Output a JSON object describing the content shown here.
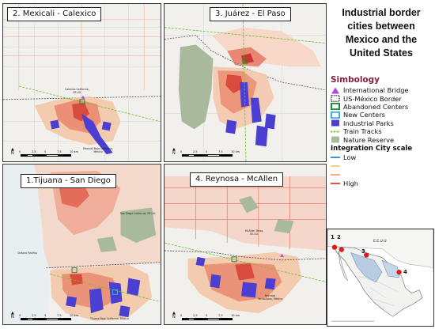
{
  "main_title": {
    "line1": "Industrial border",
    "line2": "cities between",
    "line3": "Mexico and the",
    "line4": "United States"
  },
  "panels": {
    "mexicali": {
      "title": "2. Mexicali - Calexico",
      "label_us": "Calexico California,\nEE.UU",
      "label_mx": "Mexicali Baja California,\nMéxico"
    },
    "juarez": {
      "title": "3. Juárez - El Paso"
    },
    "tijuana": {
      "title": "1.Tijuana - San Diego",
      "label_us": "San Diego California, EE.UU.",
      "label_mx": "Tijuana Baja California, México",
      "label_ocean": "Océano Pacífico"
    },
    "reynosa": {
      "title": "4. Reynosa - McAllen",
      "label_us": "McAllen Texas,\nEE.UU.",
      "label_mx": "Reynosa\nTamaulipas, México"
    }
  },
  "scale_bar": {
    "ticks": [
      "0",
      "5",
      "2.5",
      "5",
      "7.5",
      "10 km"
    ]
  },
  "north_arrow": "N",
  "legend": {
    "title": "Simbology",
    "items": [
      {
        "label": "International Bridge",
        "icon": "triangle-icon",
        "color": "#b04adf"
      },
      {
        "label": "US-México Border",
        "icon": "dashed-box-icon",
        "color": "#222222"
      },
      {
        "label": "Abandoned Centers",
        "icon": "box-icon",
        "color": "#1f8a3c"
      },
      {
        "label": "New Centers",
        "icon": "box-icon",
        "color": "#3ab0d8"
      },
      {
        "label": "Industrial Parks",
        "icon": "fill-icon",
        "color": "#4b3fd1"
      },
      {
        "label": "Train Tracks",
        "icon": "dashed-line-icon",
        "color": "#6abf2a"
      },
      {
        "label": "Nature Reserve",
        "icon": "fill-icon",
        "color": "#a9b99c"
      }
    ],
    "scale_title": "Integration City scale",
    "scale_low": "Low",
    "scale_high": "High",
    "scale_colors": [
      "#4c8fd6",
      "#f2d27c",
      "#f2b07a",
      "#e05a4a"
    ]
  },
  "inset": {
    "label_us": "E.E.U.U",
    "num_tijuana": "1",
    "num_mexicali": "2",
    "num_juarez": "3",
    "num_reynosa": "4",
    "marker_color": "#d81e1e"
  }
}
